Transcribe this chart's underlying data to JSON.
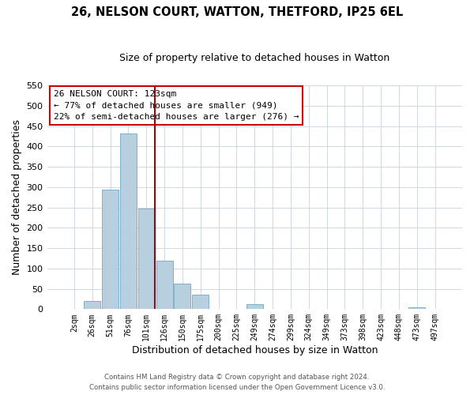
{
  "title": "26, NELSON COURT, WATTON, THETFORD, IP25 6EL",
  "subtitle": "Size of property relative to detached houses in Watton",
  "xlabel": "Distribution of detached houses by size in Watton",
  "ylabel": "Number of detached properties",
  "bar_labels": [
    "2sqm",
    "26sqm",
    "51sqm",
    "76sqm",
    "101sqm",
    "126sqm",
    "150sqm",
    "175sqm",
    "200sqm",
    "225sqm",
    "249sqm",
    "274sqm",
    "299sqm",
    "324sqm",
    "349sqm",
    "373sqm",
    "398sqm",
    "423sqm",
    "448sqm",
    "473sqm",
    "497sqm"
  ],
  "bar_values": [
    0,
    20,
    293,
    432,
    248,
    120,
    63,
    35,
    0,
    0,
    13,
    0,
    0,
    0,
    0,
    0,
    0,
    0,
    0,
    5,
    0
  ],
  "bar_color": "#b8cfe0",
  "bar_edgecolor": "#6fa8c8",
  "vline_color": "#aa0000",
  "ylim": [
    0,
    550
  ],
  "yticks": [
    0,
    50,
    100,
    150,
    200,
    250,
    300,
    350,
    400,
    450,
    500,
    550
  ],
  "annotation_title": "26 NELSON COURT: 123sqm",
  "annotation_line1": "← 77% of detached houses are smaller (949)",
  "annotation_line2": "22% of semi-detached houses are larger (276) →",
  "annotation_box_color": "#cc0000",
  "footer_line1": "Contains HM Land Registry data © Crown copyright and database right 2024.",
  "footer_line2": "Contains public sector information licensed under the Open Government Licence v3.0.",
  "background_color": "#ffffff",
  "grid_color": "#d0d8e0"
}
